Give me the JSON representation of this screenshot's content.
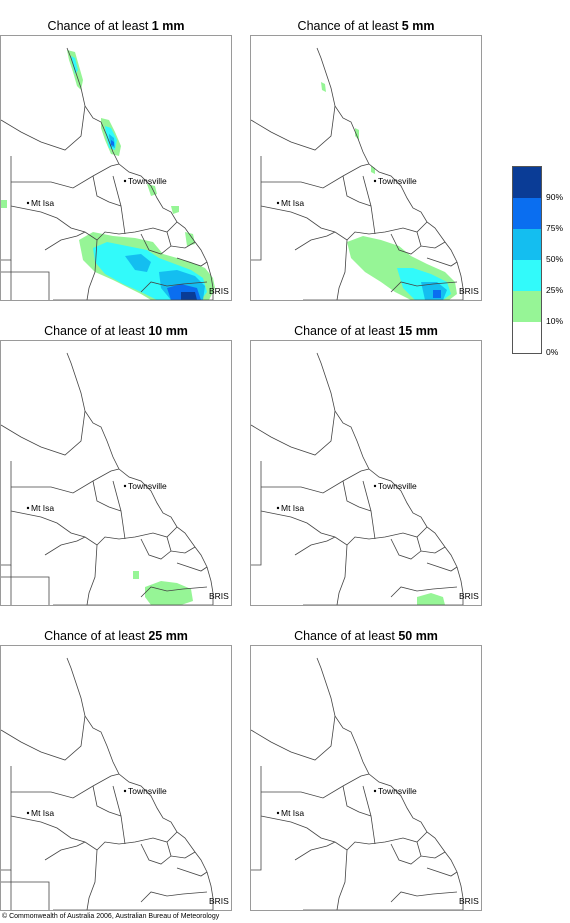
{
  "panels": [
    {
      "title_prefix": "Chance of at least ",
      "title_amount": "1 mm"
    },
    {
      "title_prefix": "Chance of at least ",
      "title_amount": "5 mm"
    },
    {
      "title_prefix": "Chance of at least ",
      "title_amount": "10 mm"
    },
    {
      "title_prefix": "Chance of at least ",
      "title_amount": "15 mm"
    },
    {
      "title_prefix": "Chance of at least ",
      "title_amount": "25 mm"
    },
    {
      "title_prefix": "Chance of at least ",
      "title_amount": "50 mm"
    }
  ],
  "places": {
    "townsville": "Townsville",
    "mt_isa": "Mt Isa",
    "brisbane": "BRIS"
  },
  "legend": {
    "labels": [
      "90%",
      "75%",
      "50%",
      "25%",
      "10%",
      "0%"
    ],
    "colors": [
      "#0a3c96",
      "#0a6ef0",
      "#14bef0",
      "#32fafa",
      "#96f596",
      "#ffffff"
    ]
  },
  "copyright": "© Commonwealth of Australia 2006, Australian Bureau of Meteorology"
}
